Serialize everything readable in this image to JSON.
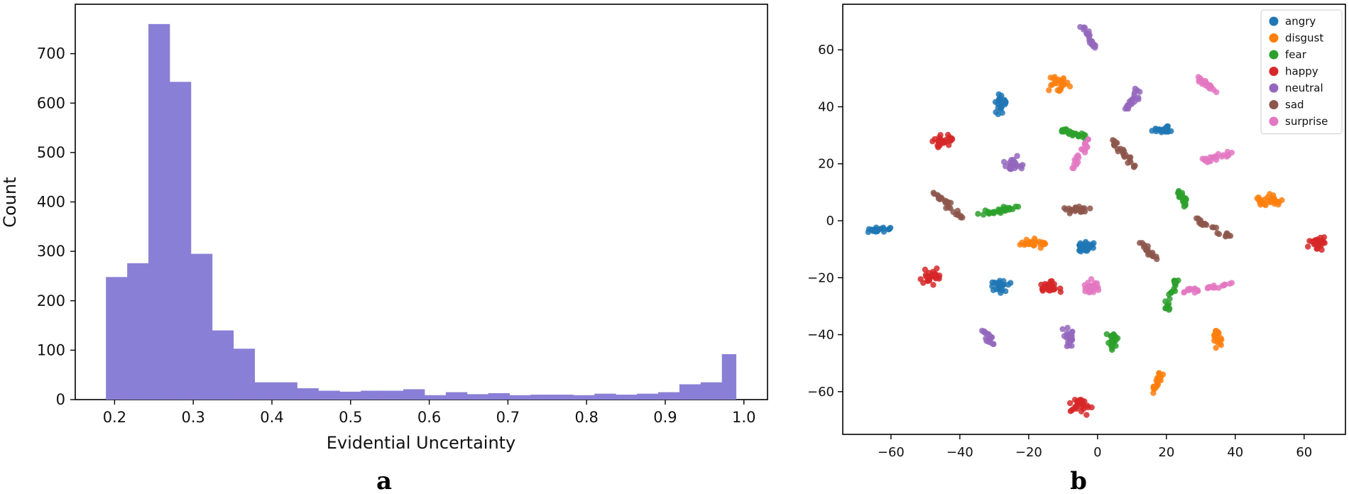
{
  "chart_data": [
    {
      "panel": "a",
      "type": "bar",
      "xlabel": "Evidential Uncertainty",
      "ylabel": "Count",
      "xlim": [
        0.15,
        1.03
      ],
      "ylim": [
        0,
        800
      ],
      "xticks": [
        0.2,
        0.3,
        0.4,
        0.5,
        0.6,
        0.7,
        0.8,
        0.9,
        1.0
      ],
      "xtick_labels": [
        "0.2",
        "0.3",
        "0.4",
        "0.5",
        "0.6",
        "0.7",
        "0.8",
        "0.9",
        "1.0"
      ],
      "yticks": [
        0,
        100,
        200,
        300,
        400,
        500,
        600,
        700
      ],
      "ytick_labels": [
        "0",
        "100",
        "200",
        "300",
        "400",
        "500",
        "600",
        "700"
      ],
      "bin_edges": [
        0.189,
        0.216,
        0.243,
        0.27,
        0.297,
        0.324,
        0.351,
        0.378,
        0.405,
        0.432,
        0.459,
        0.486,
        0.513,
        0.54,
        0.567,
        0.594,
        0.621,
        0.648,
        0.675,
        0.702,
        0.729,
        0.756,
        0.783,
        0.81,
        0.837,
        0.864,
        0.891,
        0.918,
        0.945,
        0.972,
        0.99
      ],
      "counts": [
        248,
        276,
        760,
        643,
        295,
        140,
        103,
        35,
        35,
        23,
        18,
        16,
        18,
        18,
        21,
        9,
        15,
        11,
        13,
        9,
        10,
        10,
        9,
        12,
        10,
        12,
        15,
        31,
        35,
        92
      ],
      "color": "#8a7fd6",
      "grid": false
    },
    {
      "panel": "b",
      "type": "scatter",
      "xlabel": "",
      "ylabel": "",
      "xlim": [
        -74,
        72
      ],
      "ylim": [
        -75,
        76
      ],
      "xticks": [
        -60,
        -40,
        -20,
        0,
        20,
        40,
        60
      ],
      "xtick_labels": [
        "−60",
        "−40",
        "−20",
        "0",
        "20",
        "40",
        "60"
      ],
      "yticks": [
        -60,
        -40,
        -20,
        0,
        20,
        40,
        60
      ],
      "ytick_labels": [
        "−60",
        "−40",
        "−20",
        "0",
        "20",
        "40",
        "60"
      ],
      "legend_position": "top-right",
      "grid": false,
      "series": [
        {
          "name": "angry",
          "color": "#1f77b4",
          "clusters": [
            {
              "type": "blob",
              "cx": -28,
              "cy": 41,
              "rx": 1.6,
              "ry": 3.5,
              "n": 26
            },
            {
              "type": "blob",
              "cx": 19,
              "cy": 32,
              "rx": 3.5,
              "ry": 1.2,
              "n": 22
            },
            {
              "type": "blob",
              "cx": -64,
              "cy": -3,
              "rx": 3.5,
              "ry": 1.0,
              "n": 22
            },
            {
              "type": "blob",
              "cx": -4,
              "cy": -9,
              "rx": 3.0,
              "ry": 2.0,
              "n": 28
            },
            {
              "type": "blob",
              "cx": -28,
              "cy": -23,
              "rx": 2.5,
              "ry": 2.5,
              "n": 28
            }
          ]
        },
        {
          "name": "disgust",
          "color": "#ff7f0e",
          "clusters": [
            {
              "type": "blob",
              "cx": -12,
              "cy": 48,
              "rx": 2.8,
              "ry": 2.5,
              "n": 26
            },
            {
              "type": "blob",
              "cx": -18,
              "cy": -8,
              "rx": 3.8,
              "ry": 1.3,
              "n": 26
            },
            {
              "type": "blob",
              "cx": 50,
              "cy": 7,
              "rx": 3.2,
              "ry": 2.2,
              "n": 30
            },
            {
              "type": "line",
              "x0": 19,
              "y0": -53,
              "x1": 16,
              "y1": -60,
              "n": 24
            },
            {
              "type": "blob",
              "cx": 35,
              "cy": -41,
              "rx": 1.5,
              "ry": 3.0,
              "n": 22
            }
          ]
        },
        {
          "name": "fear",
          "color": "#2ca02c",
          "clusters": [
            {
              "type": "line",
              "x0": -11,
              "y0": 32,
              "x1": -3,
              "y1": 29,
              "n": 26
            },
            {
              "type": "line",
              "x0": -35,
              "y0": 2,
              "x1": -23,
              "y1": 5,
              "n": 30
            },
            {
              "type": "line",
              "x0": 23,
              "y0": 11,
              "x1": 26,
              "y1": 5,
              "n": 22
            },
            {
              "type": "line",
              "x0": 20,
              "y0": -32,
              "x1": 23,
              "y1": -20,
              "n": 26
            },
            {
              "type": "blob",
              "cx": 4,
              "cy": -42,
              "rx": 1.5,
              "ry": 3.0,
              "n": 22
            }
          ]
        },
        {
          "name": "happy",
          "color": "#d62728",
          "clusters": [
            {
              "type": "blob",
              "cx": -45,
              "cy": 28,
              "rx": 3.0,
              "ry": 2.2,
              "n": 28
            },
            {
              "type": "blob",
              "cx": 64,
              "cy": -8,
              "rx": 2.5,
              "ry": 2.5,
              "n": 28
            },
            {
              "type": "blob",
              "cx": -48,
              "cy": -20,
              "rx": 2.8,
              "ry": 2.5,
              "n": 28
            },
            {
              "type": "blob",
              "cx": -14,
              "cy": -23,
              "rx": 3.2,
              "ry": 2.2,
              "n": 30
            },
            {
              "type": "blob",
              "cx": -5,
              "cy": -65,
              "rx": 3.0,
              "ry": 2.5,
              "n": 28
            }
          ]
        },
        {
          "name": "neutral",
          "color": "#9467bd",
          "clusters": [
            {
              "type": "line",
              "x0": -4,
              "y0": 68,
              "x1": -1,
              "y1": 61,
              "n": 22
            },
            {
              "type": "line",
              "x0": 8,
              "y0": 38,
              "x1": 12,
              "y1": 46,
              "n": 22
            },
            {
              "type": "blob",
              "cx": -25,
              "cy": 20,
              "rx": 3.0,
              "ry": 2.2,
              "n": 26
            },
            {
              "type": "blob",
              "cx": -8,
              "cy": -41,
              "rx": 2.2,
              "ry": 3.0,
              "n": 26
            },
            {
              "type": "line",
              "x0": -33,
              "y0": -39,
              "x1": -30,
              "y1": -44,
              "n": 20
            }
          ]
        },
        {
          "name": "sad",
          "color": "#8c564b",
          "clusters": [
            {
              "type": "line",
              "x0": 3,
              "y0": 30,
              "x1": 11,
              "y1": 19,
              "n": 26
            },
            {
              "type": "line",
              "x0": -48,
              "y0": 11,
              "x1": -39,
              "y1": 0,
              "n": 26
            },
            {
              "type": "blob",
              "cx": -6,
              "cy": 4,
              "rx": 3.5,
              "ry": 1.2,
              "n": 26
            },
            {
              "type": "line",
              "x0": 28,
              "y0": 1,
              "x1": 39,
              "y1": -6,
              "n": 24
            },
            {
              "type": "line",
              "x0": 13,
              "y0": -8,
              "x1": 17,
              "y1": -14,
              "n": 20
            }
          ]
        },
        {
          "name": "surprise",
          "color": "#e377c2",
          "clusters": [
            {
              "type": "line",
              "x0": 29,
              "y0": 50,
              "x1": 35,
              "y1": 45,
              "n": 22
            },
            {
              "type": "line",
              "x0": -8,
              "y0": 17,
              "x1": -2,
              "y1": 29,
              "n": 22
            },
            {
              "type": "line",
              "x0": 31,
              "y0": 21,
              "x1": 39,
              "y1": 24,
              "n": 24
            },
            {
              "type": "blob",
              "cx": -2,
              "cy": -23,
              "rx": 2.5,
              "ry": 2.2,
              "n": 26
            },
            {
              "type": "line",
              "x0": 25,
              "y0": -25,
              "x1": 39,
              "y1": -22,
              "n": 28
            }
          ]
        }
      ]
    }
  ]
}
